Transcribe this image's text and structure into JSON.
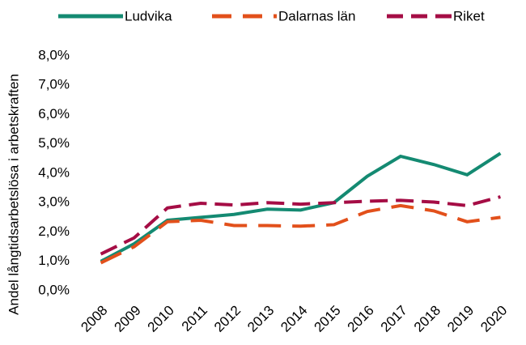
{
  "chart_data": {
    "type": "line",
    "y_label": "Andel långtidsarbetslösa i arbetskraften",
    "categories": [
      "2008",
      "2009",
      "2010",
      "2011",
      "2012",
      "2013",
      "2014",
      "2015",
      "2016",
      "2017",
      "2018",
      "2019",
      "2020"
    ],
    "series": [
      {
        "name": "Ludvika",
        "color": "#148a72",
        "dash": "none",
        "values": [
          1.0,
          1.6,
          2.4,
          2.5,
          2.6,
          2.78,
          2.75,
          3.0,
          3.9,
          4.58,
          4.3,
          3.95,
          4.68
        ]
      },
      {
        "name": "Dalarnas län",
        "color": "#e2501b",
        "dash": "28 14",
        "values": [
          0.95,
          1.5,
          2.35,
          2.4,
          2.22,
          2.22,
          2.2,
          2.25,
          2.7,
          2.9,
          2.72,
          2.35,
          2.5
        ]
      },
      {
        "name": "Riket",
        "color": "#a50d45",
        "dash": "22 10",
        "values": [
          1.25,
          1.8,
          2.82,
          2.98,
          2.92,
          3.0,
          2.95,
          3.0,
          3.05,
          3.08,
          3.02,
          2.9,
          3.2
        ]
      }
    ],
    "ylim": [
      0,
      8
    ],
    "yticks": [
      {
        "value": 0,
        "label": "0,0%"
      },
      {
        "value": 1,
        "label": "1,0%"
      },
      {
        "value": 2,
        "label": "2,0%"
      },
      {
        "value": 3,
        "label": "3,0%"
      },
      {
        "value": 4,
        "label": "4,0%"
      },
      {
        "value": 5,
        "label": "5,0%"
      },
      {
        "value": 6,
        "label": "6,0%"
      },
      {
        "value": 7,
        "label": "7,0%"
      },
      {
        "value": 8,
        "label": "8,0%"
      }
    ],
    "grid": false,
    "legend": "top"
  }
}
